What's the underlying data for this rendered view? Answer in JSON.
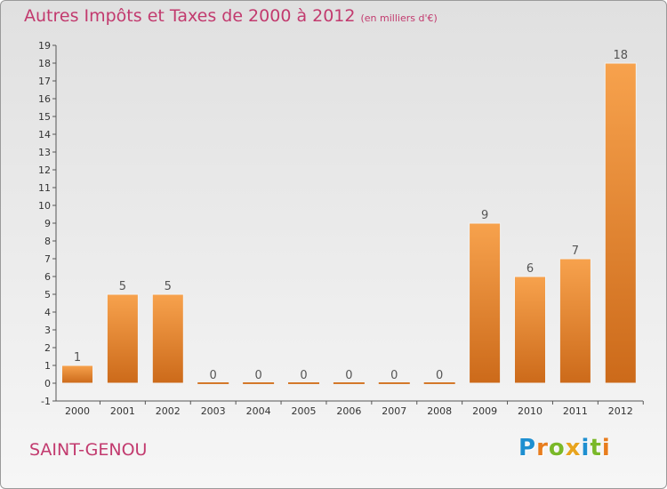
{
  "header": {
    "title": "Autres Impôts et Taxes de 2000 à 2012",
    "subtitle": "(en milliers d'€)"
  },
  "footer": {
    "commune": "SAINT-GENOU",
    "logo_letters": [
      {
        "char": "P",
        "color": "#1e8fd0"
      },
      {
        "char": "r",
        "color": "#e87d1e"
      },
      {
        "char": "o",
        "color": "#7ab829"
      },
      {
        "char": "x",
        "color": "#e8a41e"
      },
      {
        "char": "i",
        "color": "#1e8fd0"
      },
      {
        "char": "t",
        "color": "#7ab829"
      },
      {
        "char": "i",
        "color": "#e87d1e"
      }
    ]
  },
  "colors": {
    "title": "#c23a6e",
    "bar_light": "#f7a24d",
    "bar_dark": "#cc6a1a",
    "axis": "#555555"
  },
  "chart_data": {
    "type": "bar",
    "title": "Autres Impôts et Taxes de 2000 à 2012",
    "subtitle": "(en milliers d'€)",
    "xlabel": "",
    "ylabel": "",
    "categories": [
      "2000",
      "2001",
      "2002",
      "2003",
      "2004",
      "2005",
      "2006",
      "2007",
      "2008",
      "2009",
      "2010",
      "2011",
      "2012"
    ],
    "values": [
      1,
      5,
      5,
      0,
      0,
      0,
      0,
      0,
      0,
      9,
      6,
      7,
      18
    ],
    "data_labels": [
      "1",
      "5",
      "5",
      "0",
      "0",
      "0",
      "0",
      "0",
      "0",
      "9",
      "6",
      "7",
      "18"
    ],
    "ylim": [
      -1,
      19
    ],
    "yticks": [
      -1,
      0,
      1,
      2,
      3,
      4,
      5,
      6,
      7,
      8,
      9,
      10,
      11,
      12,
      13,
      14,
      15,
      16,
      17,
      18,
      19
    ],
    "ytick_labels": [
      "-1",
      "0",
      "1",
      "2",
      "3",
      "4",
      "5",
      "6",
      "7",
      "8",
      "9",
      "10",
      "11",
      "12",
      "13",
      "14",
      "15",
      "16",
      "17",
      "18",
      "19"
    ],
    "grid": false,
    "legend": "none"
  }
}
